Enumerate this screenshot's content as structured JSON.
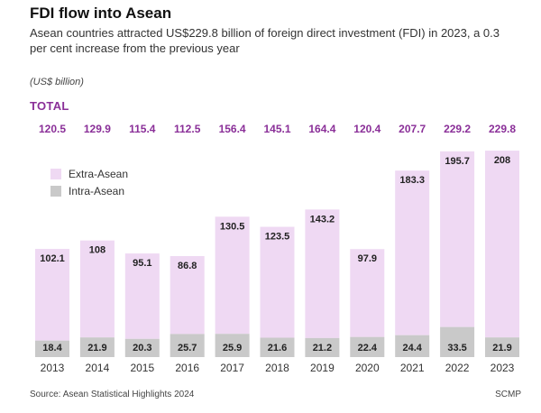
{
  "header": {
    "title": "FDI flow into Asean",
    "subtitle": "Asean countries attracted US$229.8 billion of foreign direct investment (FDI) in 2023, a 0.3 per cent increase from the previous year",
    "units": "(US$ billion)",
    "total_label": "TOTAL"
  },
  "footer": {
    "source": "Source: Asean Statistical Highlights 2024",
    "credit": "SCMP"
  },
  "colors": {
    "extra": "#efd9f3",
    "intra": "#c9c9c9",
    "total": "#8a2f98"
  },
  "chart_data": {
    "type": "bar",
    "stacked": true,
    "categories": [
      "2013",
      "2014",
      "2015",
      "2016",
      "2017",
      "2018",
      "2019",
      "2020",
      "2021",
      "2022",
      "2023"
    ],
    "series": [
      {
        "name": "Intra-Asean",
        "values": [
          18.4,
          21.9,
          20.3,
          25.7,
          25.9,
          21.6,
          21.2,
          22.4,
          24.4,
          33.5,
          21.9
        ]
      },
      {
        "name": "Extra-Asean",
        "values": [
          102.1,
          108,
          95.1,
          86.8,
          130.5,
          123.5,
          143.2,
          97.9,
          183.3,
          195.7,
          208
        ]
      }
    ],
    "totals": [
      120.5,
      129.9,
      115.4,
      112.5,
      156.4,
      145.1,
      164.4,
      120.4,
      207.7,
      229.2,
      229.8
    ],
    "ylim": [
      0,
      230
    ],
    "legend": [
      {
        "label": "Extra-Asean",
        "color": "#efd9f3"
      },
      {
        "label": "Intra-Asean",
        "color": "#c9c9c9"
      }
    ],
    "legend_position": "top-left",
    "grid": false
  }
}
